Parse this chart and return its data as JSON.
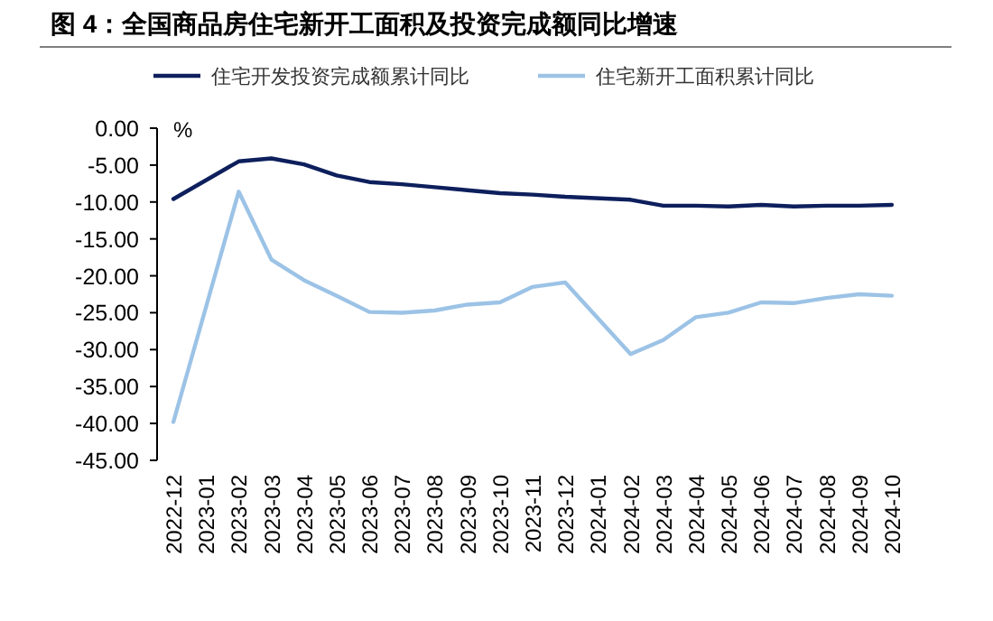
{
  "chart_data": {
    "type": "line",
    "title": "图 4：全国商品房住宅新开工面积及投资完成额同比增速",
    "ylabel": "%",
    "categories": [
      "2022-12",
      "2023-01",
      "2023-02",
      "2023-03",
      "2023-04",
      "2023-05",
      "2023-06",
      "2023-07",
      "2023-08",
      "2023-09",
      "2023-10",
      "2023-11",
      "2023-12",
      "2024-01",
      "2024-02",
      "2024-03",
      "2024-04",
      "2024-05",
      "2024-06",
      "2024-07",
      "2024-08",
      "2024-09",
      "2024-10"
    ],
    "series": [
      {
        "name": "住宅开发投资完成额累计同比",
        "color": "#0d1f5c",
        "values": [
          -9.6,
          null,
          -4.5,
          -4.1,
          -4.9,
          -6.4,
          -7.3,
          -7.6,
          -8.0,
          -8.4,
          -8.8,
          -9.0,
          -9.3,
          null,
          -9.7,
          -10.5,
          -10.5,
          -10.6,
          -10.4,
          -10.6,
          -10.5,
          -10.5,
          -10.4
        ]
      },
      {
        "name": "住宅新开工面积累计同比",
        "color": "#9cc3e6",
        "values": [
          -39.8,
          null,
          -8.6,
          -17.8,
          -20.6,
          -22.7,
          -24.9,
          -25.0,
          -24.7,
          -23.9,
          -23.6,
          -21.5,
          -20.9,
          null,
          -30.6,
          -28.7,
          -25.6,
          -25.0,
          -23.6,
          -23.7,
          -23.0,
          -22.5,
          -22.7
        ]
      }
    ],
    "ylim": [
      -45,
      0
    ],
    "yticks": [
      {
        "value": 0,
        "label": "0.00"
      },
      {
        "value": -5,
        "label": "-5.00"
      },
      {
        "value": -10,
        "label": "-10.00"
      },
      {
        "value": -15,
        "label": "-15.00"
      },
      {
        "value": -20,
        "label": "-20.00"
      },
      {
        "value": -25,
        "label": "-25.00"
      },
      {
        "value": -30,
        "label": "-30.00"
      },
      {
        "value": -35,
        "label": "-35.00"
      },
      {
        "value": -40,
        "label": "-40.00"
      },
      {
        "value": -45,
        "label": "-45.00"
      }
    ],
    "legend": "top",
    "grid": false
  }
}
